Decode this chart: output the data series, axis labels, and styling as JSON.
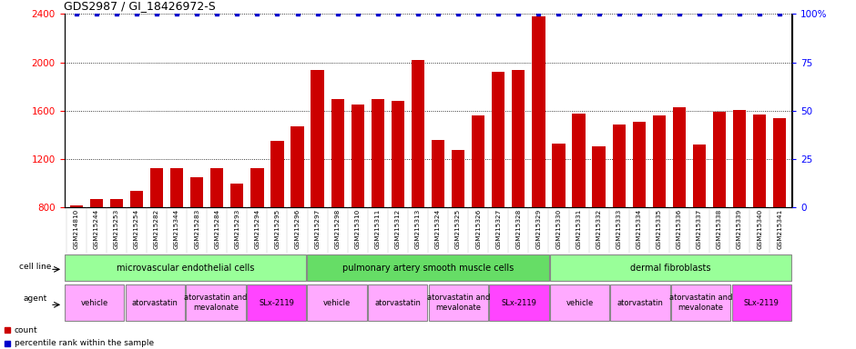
{
  "title": "GDS2987 / GI_18426972-S",
  "samples": [
    "GSM214810",
    "GSM215244",
    "GSM215253",
    "GSM215254",
    "GSM215282",
    "GSM215344",
    "GSM215283",
    "GSM215284",
    "GSM215293",
    "GSM215294",
    "GSM215295",
    "GSM215296",
    "GSM215297",
    "GSM215298",
    "GSM215310",
    "GSM215311",
    "GSM215312",
    "GSM215313",
    "GSM215324",
    "GSM215325",
    "GSM215326",
    "GSM215327",
    "GSM215328",
    "GSM215329",
    "GSM215330",
    "GSM215331",
    "GSM215332",
    "GSM215333",
    "GSM215334",
    "GSM215335",
    "GSM215336",
    "GSM215337",
    "GSM215338",
    "GSM215339",
    "GSM215340",
    "GSM215341"
  ],
  "bar_values": [
    820,
    870,
    870,
    940,
    1130,
    1130,
    1050,
    1130,
    1000,
    1130,
    1350,
    1470,
    1940,
    1700,
    1650,
    1700,
    1680,
    2020,
    1360,
    1280,
    1560,
    1920,
    1940,
    2380,
    1330,
    1580,
    1310,
    1490,
    1510,
    1560,
    1630,
    1320,
    1590,
    1610,
    1570,
    1540
  ],
  "percentile_values": [
    100,
    100,
    100,
    100,
    100,
    100,
    100,
    100,
    100,
    100,
    100,
    100,
    100,
    100,
    100,
    100,
    100,
    100,
    100,
    100,
    100,
    100,
    100,
    100,
    100,
    100,
    100,
    100,
    100,
    100,
    100,
    100,
    100,
    100,
    100,
    100
  ],
  "bar_color": "#cc0000",
  "dot_color": "#0000cc",
  "ylim_left": [
    800,
    2400
  ],
  "ylim_right": [
    0,
    100
  ],
  "yticks_left": [
    800,
    1200,
    1600,
    2000,
    2400
  ],
  "yticks_right": [
    0,
    25,
    50,
    75,
    100
  ],
  "cell_line_groups": [
    {
      "label": "microvascular endothelial cells",
      "start": 0,
      "end": 12,
      "color": "#99ff99"
    },
    {
      "label": "pulmonary artery smooth muscle cells",
      "start": 12,
      "end": 24,
      "color": "#66dd66"
    },
    {
      "label": "dermal fibroblasts",
      "start": 24,
      "end": 36,
      "color": "#99ff99"
    }
  ],
  "agent_groups": [
    {
      "label": "vehicle",
      "start": 0,
      "end": 3,
      "color": "#ffaaff"
    },
    {
      "label": "atorvastatin",
      "start": 3,
      "end": 6,
      "color": "#ffaaff"
    },
    {
      "label": "atorvastatin and\nmevalonate",
      "start": 6,
      "end": 9,
      "color": "#ffaaff"
    },
    {
      "label": "SLx-2119",
      "start": 9,
      "end": 12,
      "color": "#ff44ff"
    },
    {
      "label": "vehicle",
      "start": 12,
      "end": 15,
      "color": "#ffaaff"
    },
    {
      "label": "atorvastatin",
      "start": 15,
      "end": 18,
      "color": "#ffaaff"
    },
    {
      "label": "atorvastatin and\nmevalonate",
      "start": 18,
      "end": 21,
      "color": "#ffaaff"
    },
    {
      "label": "SLx-2119",
      "start": 21,
      "end": 24,
      "color": "#ff44ff"
    },
    {
      "label": "vehicle",
      "start": 24,
      "end": 27,
      "color": "#ffaaff"
    },
    {
      "label": "atorvastatin",
      "start": 27,
      "end": 30,
      "color": "#ffaaff"
    },
    {
      "label": "atorvastatin and\nmevalonate",
      "start": 30,
      "end": 33,
      "color": "#ffaaff"
    },
    {
      "label": "SLx-2119",
      "start": 33,
      "end": 36,
      "color": "#ff44ff"
    }
  ]
}
